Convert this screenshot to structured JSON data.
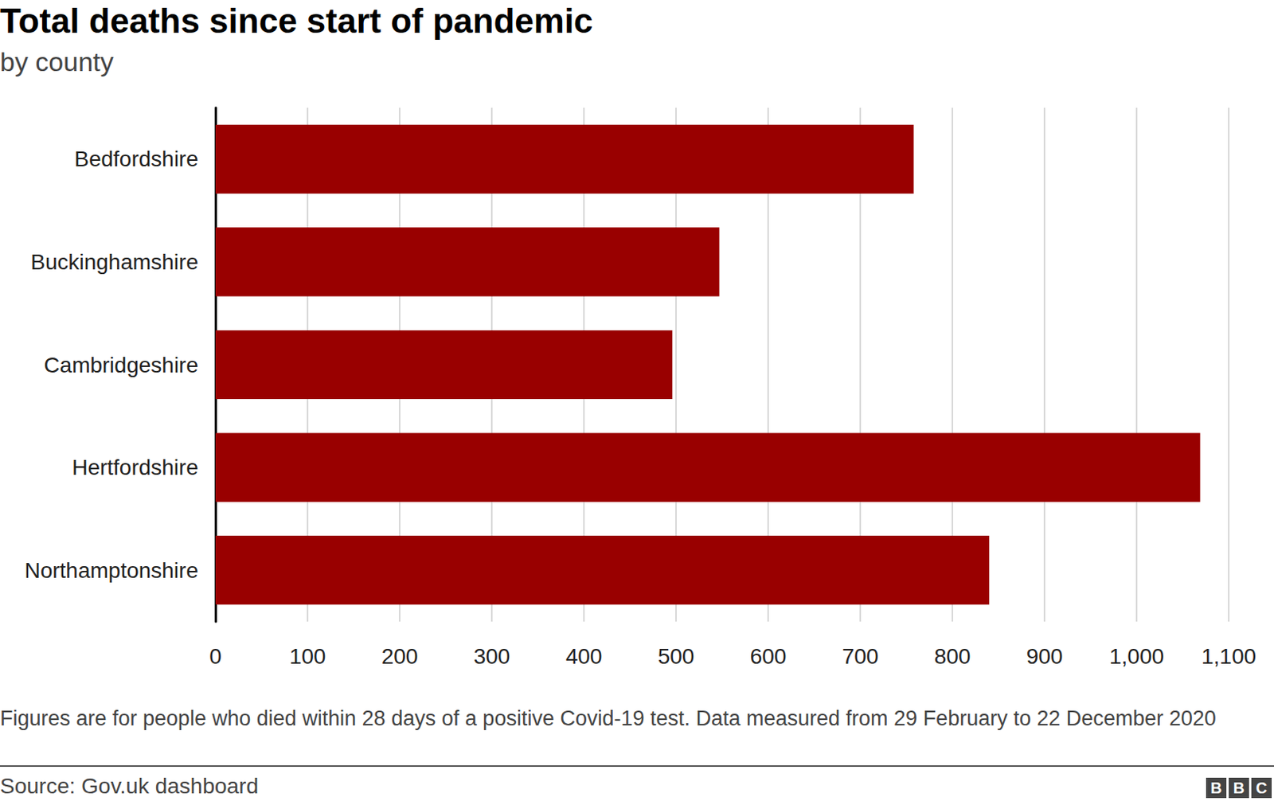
{
  "chart_data": {
    "type": "bar",
    "orientation": "horizontal",
    "title": "Total deaths since start of pandemic",
    "subtitle": "by county",
    "categories": [
      "Bedfordshire",
      "Buckinghamshire",
      "Cambridgeshire",
      "Hertfordshire",
      "Northamptonshire"
    ],
    "values": [
      758,
      547,
      496,
      1069,
      840
    ],
    "color": "#990000",
    "xlim": [
      0,
      1100
    ],
    "xticks": [
      0,
      100,
      200,
      300,
      400,
      500,
      600,
      700,
      800,
      900,
      {
        "value": 1000,
        "label": "1,000"
      },
      {
        "value": 1100,
        "label": "1,100"
      }
    ],
    "grid": true,
    "note": "Figures are for people who died within 28 days of a positive Covid-19 test. Data measured from 29 February to 22 December 2020",
    "source": "Source: Gov.uk dashboard",
    "logo": "BBC"
  }
}
